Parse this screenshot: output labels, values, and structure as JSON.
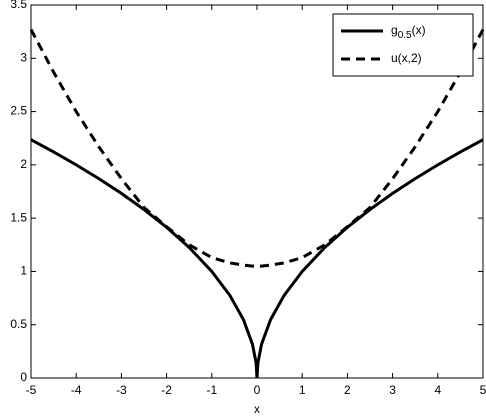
{
  "chart_data": {
    "type": "line",
    "xlabel": "x",
    "x": [
      -5,
      -4.5,
      -4,
      -3.5,
      -3,
      -2.5,
      -2,
      -1.5,
      -1,
      -0.6,
      -0.3,
      -0.1,
      -0.02,
      0,
      0.02,
      0.1,
      0.3,
      0.6,
      1,
      1.5,
      2,
      2.5,
      3,
      3.5,
      4,
      4.5,
      5
    ],
    "series": [
      {
        "name": "g0.5(x)",
        "color": "#000000",
        "dash": "solid",
        "values": [
          2.236,
          2.121,
          2,
          1.871,
          1.732,
          1.581,
          1.414,
          1.225,
          1,
          0.775,
          0.548,
          0.316,
          0.141,
          0,
          0.141,
          0.316,
          0.548,
          0.775,
          1,
          1.225,
          1.414,
          1.581,
          1.732,
          1.871,
          2,
          2.121,
          2.236
        ]
      },
      {
        "name": "u(x,2)",
        "color": "#000000",
        "dash": "dashed",
        "values": [
          3.27,
          2.87,
          2.5,
          2.17,
          1.87,
          1.6,
          1.42,
          1.25,
          1.13,
          1.08,
          1.06,
          1.05,
          1.05,
          1.05,
          1.05,
          1.05,
          1.06,
          1.08,
          1.13,
          1.25,
          1.42,
          1.6,
          1.87,
          2.17,
          2.5,
          2.87,
          3.27
        ]
      }
    ],
    "xlim": [
      -5,
      5
    ],
    "ylim": [
      0,
      3.5
    ],
    "xticks": [
      -5,
      -4,
      -3,
      -2,
      -1,
      0,
      1,
      2,
      3,
      4,
      5
    ],
    "yticks": [
      0,
      0.5,
      1,
      1.5,
      2,
      2.5,
      3,
      3.5
    ],
    "grid": false,
    "legend": "upper right"
  }
}
